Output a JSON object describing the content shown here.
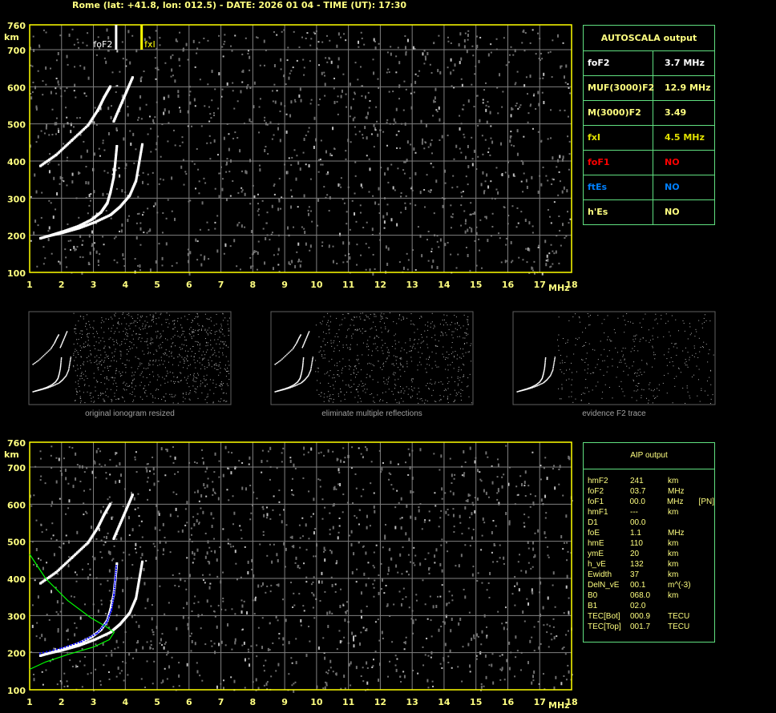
{
  "title": "Rome (lat: +41.8, lon: 012.5) - DATE: 2026 01 04 - TIME (UT): 17:30",
  "colors": {
    "axis": "#ffff00",
    "grid": "#808080",
    "table_border": "#60e080",
    "label": "#ffff80",
    "foF1": "#ff0000",
    "ftEs": "#0080ff",
    "profile": "#00ff00",
    "fit": "#0000ff"
  },
  "autoscala": {
    "header": "AUTOSCALA output",
    "rows": [
      {
        "key": "foF2",
        "value": "3.7 MHz",
        "color": "#ffffff"
      },
      {
        "key": "MUF(3000)F2",
        "value": "12.9 MHz",
        "color": "#ffff80"
      },
      {
        "key": "M(3000)F2",
        "value": "3.49",
        "color": "#ffff80"
      },
      {
        "key": "fxI",
        "value": "4.5 MHz",
        "color": "#e0e000"
      },
      {
        "key": "foF1",
        "value": "NO",
        "color": "#ff0000"
      },
      {
        "key": "ftEs",
        "value": "NO",
        "color": "#0080ff"
      },
      {
        "key": "h'Es",
        "value": "NO",
        "color": "#ffff80"
      }
    ]
  },
  "aip": {
    "header": "AIP output",
    "rows": [
      [
        "hmF2",
        "241",
        "km",
        ""
      ],
      [
        "foF2",
        "03.7",
        "MHz",
        ""
      ],
      [
        "foF1",
        "00.0",
        "MHz",
        "[PN]"
      ],
      [
        "hmF1",
        "---",
        "km",
        ""
      ],
      [
        "D1",
        "00.0",
        "",
        ""
      ],
      [
        "foE",
        "1.1",
        "MHz",
        ""
      ],
      [
        "hmE",
        "110",
        "km",
        ""
      ],
      [
        "ymE",
        "20",
        "km",
        ""
      ],
      [
        "h_vE",
        "132",
        "km",
        ""
      ],
      [
        "Ewidth",
        "37",
        "km",
        ""
      ],
      [
        "DelN_vE",
        "00.1",
        "m^(-3)",
        ""
      ],
      [
        "B0",
        "068.0",
        "km",
        ""
      ],
      [
        "B1",
        "02.0",
        "",
        ""
      ],
      [
        "TEC[Bot]",
        "000.9",
        "TECU",
        ""
      ],
      [
        "TEC[Top]",
        "001.7",
        "TECU",
        ""
      ]
    ]
  },
  "thumbnails": [
    "original ionogram resized",
    "eliminate multiple reflections",
    "evidence F2 trace"
  ],
  "chart_data": [
    {
      "type": "scatter",
      "xlabel": "MHz",
      "ylabel": "km",
      "xlim": [
        1,
        18
      ],
      "ylim": [
        100,
        760
      ],
      "xticks": [
        "1",
        "2",
        "3",
        "4",
        "5",
        "6",
        "7",
        "8",
        "9",
        "10",
        "11",
        "12",
        "13",
        "14",
        "15",
        "16",
        "17",
        "18"
      ],
      "yticks": [
        "100",
        "200",
        "300",
        "400",
        "500",
        "600",
        "700",
        "760"
      ],
      "grid": true,
      "markers": [
        {
          "label": "foF2",
          "x": 3.7
        },
        {
          "label": "fxI",
          "x": 4.5
        }
      ],
      "series": [
        {
          "points": [
            [
              1.3,
              195
            ],
            [
              1.7,
              205
            ],
            [
              2.0,
              213
            ],
            [
              2.5,
              228
            ],
            [
              2.9,
              245
            ],
            [
              3.2,
              265
            ],
            [
              3.4,
              290
            ],
            [
              3.5,
              320
            ],
            [
              3.6,
              360
            ],
            [
              3.65,
              400
            ],
            [
              3.7,
              445
            ]
          ]
        },
        {
          "points": [
            [
              1.5,
              200
            ],
            [
              2.0,
              210
            ],
            [
              2.5,
              222
            ],
            [
              3.0,
              238
            ],
            [
              3.5,
              258
            ],
            [
              3.8,
              280
            ],
            [
              4.1,
              310
            ],
            [
              4.3,
              350
            ],
            [
              4.4,
              400
            ],
            [
              4.5,
              450
            ]
          ]
        },
        {
          "points": [
            [
              1.3,
              390
            ],
            [
              1.8,
              420
            ],
            [
              2.3,
              460
            ],
            [
              2.8,
              500
            ],
            [
              3.1,
              540
            ],
            [
              3.3,
              575
            ],
            [
              3.5,
              605
            ]
          ]
        },
        {
          "points": [
            [
              3.6,
              510
            ],
            [
              3.8,
              550
            ],
            [
              4.0,
              590
            ],
            [
              4.2,
              630
            ]
          ]
        }
      ]
    },
    {
      "type": "line",
      "xlabel": "MHz",
      "ylabel": "km",
      "xlim": [
        1,
        18
      ],
      "ylim": [
        100,
        760
      ],
      "grid": true,
      "profile": [
        [
          1.0,
          465
        ],
        [
          1.5,
          400
        ],
        [
          2.2,
          340
        ],
        [
          2.9,
          295
        ],
        [
          3.4,
          270
        ],
        [
          3.65,
          255
        ],
        [
          3.5,
          235
        ],
        [
          3.0,
          215
        ],
        [
          2.2,
          195
        ],
        [
          1.5,
          175
        ],
        [
          1.0,
          155
        ]
      ],
      "fit": [
        [
          1.3,
          200
        ],
        [
          2.0,
          215
        ],
        [
          2.6,
          232
        ],
        [
          3.1,
          255
        ],
        [
          3.4,
          285
        ],
        [
          3.55,
          320
        ],
        [
          3.62,
          360
        ],
        [
          3.66,
          400
        ],
        [
          3.7,
          440
        ]
      ]
    }
  ]
}
